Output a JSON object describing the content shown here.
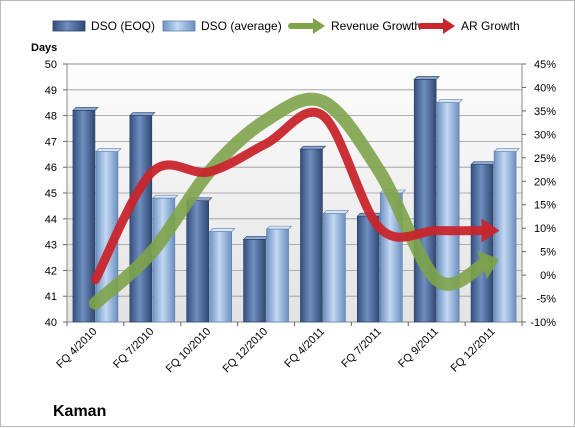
{
  "chart_data": {
    "type": "bar",
    "company": "Kaman",
    "y_left_title": "Days",
    "y_left_range": [
      40,
      50
    ],
    "y_left_ticks": [
      "40",
      "41",
      "42",
      "43",
      "44",
      "45",
      "46",
      "47",
      "48",
      "49",
      "50"
    ],
    "y_right_range": [
      -10,
      45
    ],
    "y_right_ticks": [
      "-10%",
      "-5%",
      "0%",
      "5%",
      "10%",
      "15%",
      "20%",
      "25%",
      "30%",
      "35%",
      "40%",
      "45%"
    ],
    "categories": [
      "FQ 4/2010",
      "FQ 7/2010",
      "FQ 10/2010",
      "FQ 12/2010",
      "FQ 4/2011",
      "FQ 7/2011",
      "FQ 9/2011",
      "FQ 12/2011"
    ],
    "grid": "horizontal",
    "legend_position": "top",
    "bar_series": [
      {
        "name": "DSO (EOQ)",
        "color": "#4a6a9c",
        "values": [
          48.2,
          48.0,
          44.7,
          43.2,
          46.7,
          44.1,
          49.4,
          46.1
        ]
      },
      {
        "name": "DSO (average)",
        "color": "#8fb3de",
        "values": [
          46.6,
          44.8,
          43.5,
          43.6,
          44.2,
          45.0,
          48.5,
          46.6
        ]
      }
    ],
    "line_series": [
      {
        "name": "Revenue Growth",
        "color": "#7ea34a",
        "axis": "right",
        "values": [
          -6,
          5,
          22,
          33,
          37,
          22,
          -1,
          3
        ]
      },
      {
        "name": "AR Growth",
        "color": "#c8252c",
        "axis": "right",
        "values": [
          -1,
          22,
          22,
          28,
          34,
          10,
          9.5,
          9.5
        ]
      }
    ]
  }
}
